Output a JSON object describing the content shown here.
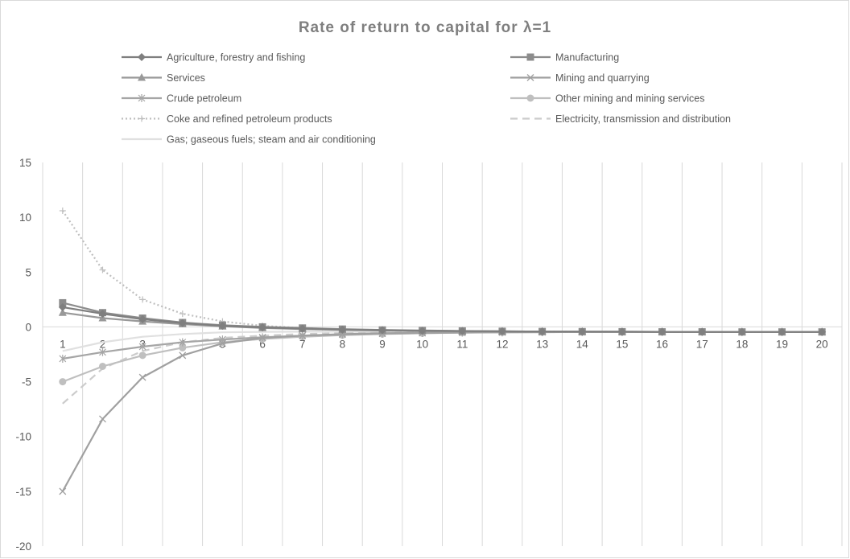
{
  "chart_data": {
    "type": "line",
    "title": "Rate of return to capital for λ=1",
    "xlabel": "",
    "ylabel": "",
    "categories": [
      1,
      2,
      3,
      4,
      5,
      6,
      7,
      8,
      9,
      10,
      11,
      12,
      13,
      14,
      15,
      16,
      17,
      18,
      19,
      20
    ],
    "ylim": [
      -20,
      15
    ],
    "yticks": [
      -20,
      -15,
      -10,
      -5,
      0,
      5,
      10,
      15
    ],
    "grid": "vertical",
    "legend_position": "top",
    "series": [
      {
        "name": "Agriculture, forestry and fishing",
        "color": "#7f7f7f",
        "marker": "diamond",
        "dash": "solid",
        "values": [
          1.8,
          1.2,
          0.7,
          0.35,
          0.1,
          -0.05,
          -0.15,
          -0.25,
          -0.3,
          -0.35,
          -0.38,
          -0.4,
          -0.42,
          -0.43,
          -0.44,
          -0.45,
          -0.45,
          -0.46,
          -0.46,
          -0.46
        ]
      },
      {
        "name": "Manufacturing",
        "color": "#8c8c8c",
        "marker": "square",
        "dash": "solid",
        "values": [
          2.2,
          1.3,
          0.8,
          0.4,
          0.15,
          0.0,
          -0.1,
          -0.2,
          -0.28,
          -0.33,
          -0.37,
          -0.4,
          -0.42,
          -0.43,
          -0.44,
          -0.45,
          -0.45,
          -0.46,
          -0.46,
          -0.46
        ]
      },
      {
        "name": "Services",
        "color": "#999999",
        "marker": "triangle",
        "dash": "solid",
        "values": [
          1.3,
          0.8,
          0.5,
          0.25,
          0.05,
          -0.1,
          -0.2,
          -0.28,
          -0.33,
          -0.37,
          -0.4,
          -0.42,
          -0.43,
          -0.44,
          -0.45,
          -0.45,
          -0.46,
          -0.46,
          -0.46,
          -0.46
        ]
      },
      {
        "name": "Mining and quarrying",
        "color": "#a0a0a0",
        "marker": "x",
        "dash": "solid",
        "values": [
          -15.0,
          -8.4,
          -4.6,
          -2.6,
          -1.5,
          -1.0,
          -0.8,
          -0.65,
          -0.58,
          -0.53,
          -0.5,
          -0.48,
          -0.47,
          -0.47,
          -0.46,
          -0.46,
          -0.46,
          -0.46,
          -0.46,
          -0.46
        ]
      },
      {
        "name": "Crude petroleum",
        "color": "#a6a6a6",
        "marker": "star",
        "dash": "solid",
        "values": [
          -2.9,
          -2.3,
          -1.8,
          -1.4,
          -1.15,
          -0.95,
          -0.8,
          -0.7,
          -0.62,
          -0.56,
          -0.52,
          -0.5,
          -0.48,
          -0.47,
          -0.47,
          -0.46,
          -0.46,
          -0.46,
          -0.46,
          -0.46
        ]
      },
      {
        "name": "Other mining and mining services",
        "color": "#bfbfbf",
        "marker": "circle",
        "dash": "solid",
        "values": [
          -5.0,
          -3.6,
          -2.6,
          -1.9,
          -1.4,
          -1.1,
          -0.9,
          -0.75,
          -0.65,
          -0.58,
          -0.53,
          -0.5,
          -0.48,
          -0.47,
          -0.47,
          -0.46,
          -0.46,
          -0.46,
          -0.46,
          -0.46
        ]
      },
      {
        "name": "Coke and refined petroleum products",
        "color": "#bfbfbf",
        "marker": "plus",
        "dash": "dotted",
        "values": [
          10.6,
          5.2,
          2.5,
          1.2,
          0.5,
          0.1,
          -0.1,
          -0.25,
          -0.32,
          -0.37,
          -0.4,
          -0.42,
          -0.43,
          -0.44,
          -0.45,
          -0.45,
          -0.46,
          -0.46,
          -0.46,
          -0.46
        ]
      },
      {
        "name": "Electricity, transmission and distribution",
        "color": "#cccccc",
        "marker": "none",
        "dash": "dashed",
        "values": [
          -7.0,
          -3.8,
          -2.2,
          -1.4,
          -1.0,
          -0.8,
          -0.65,
          -0.58,
          -0.53,
          -0.5,
          -0.48,
          -0.47,
          -0.47,
          -0.46,
          -0.46,
          -0.46,
          -0.46,
          -0.46,
          -0.46,
          -0.46
        ]
      },
      {
        "name": "Gas;  gaseous fuels; steam and air conditioning",
        "color": "#e0e0e0",
        "marker": "none",
        "dash": "solid",
        "values": [
          -2.2,
          -1.4,
          -0.9,
          -0.65,
          -0.5,
          -0.45,
          -0.44,
          -0.44,
          -0.45,
          -0.45,
          -0.45,
          -0.46,
          -0.46,
          -0.46,
          -0.46,
          -0.46,
          -0.46,
          -0.46,
          -0.46,
          -0.46
        ]
      }
    ]
  }
}
